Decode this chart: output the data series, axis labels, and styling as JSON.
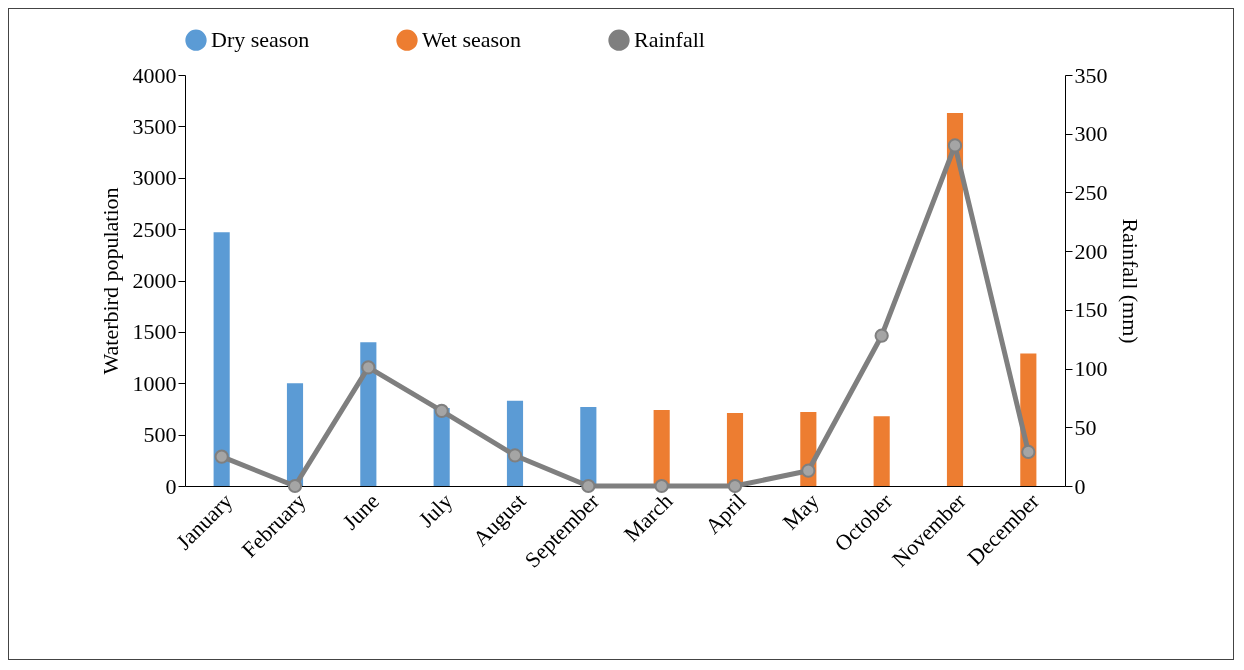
{
  "chart_data": {
    "type": "bar",
    "ylabel": "Waterbird population",
    "y2label": "Rainfall (mm)",
    "categories": [
      "January",
      "February",
      "June",
      "July",
      "August",
      "September",
      "March",
      "April",
      "May",
      "October",
      "November",
      "December"
    ],
    "series": [
      {
        "name": "Dry season",
        "color": "#5b9bd5",
        "values": [
          2470,
          1000,
          1400,
          760,
          830,
          770,
          null,
          null,
          null,
          null,
          null,
          null
        ]
      },
      {
        "name": "Wet season",
        "color": "#ed7d31",
        "values": [
          null,
          null,
          null,
          null,
          null,
          null,
          740,
          710,
          720,
          680,
          3630,
          1290
        ]
      },
      {
        "name": "Rainfall",
        "type": "line",
        "axis": "y2",
        "color": "#7f7f7f",
        "marker": "circle",
        "values": [
          25,
          0,
          101,
          64,
          26,
          0,
          0,
          0,
          13,
          128,
          290,
          29
        ]
      }
    ],
    "ylim": [
      0,
      4000
    ],
    "yticks": [
      0,
      500,
      1000,
      1500,
      2000,
      2500,
      3000,
      3500,
      4000
    ],
    "y2lim": [
      0,
      350
    ],
    "y2ticks": [
      0,
      50,
      100,
      150,
      200,
      250,
      300,
      350
    ],
    "legend": "top",
    "grid": false
  }
}
